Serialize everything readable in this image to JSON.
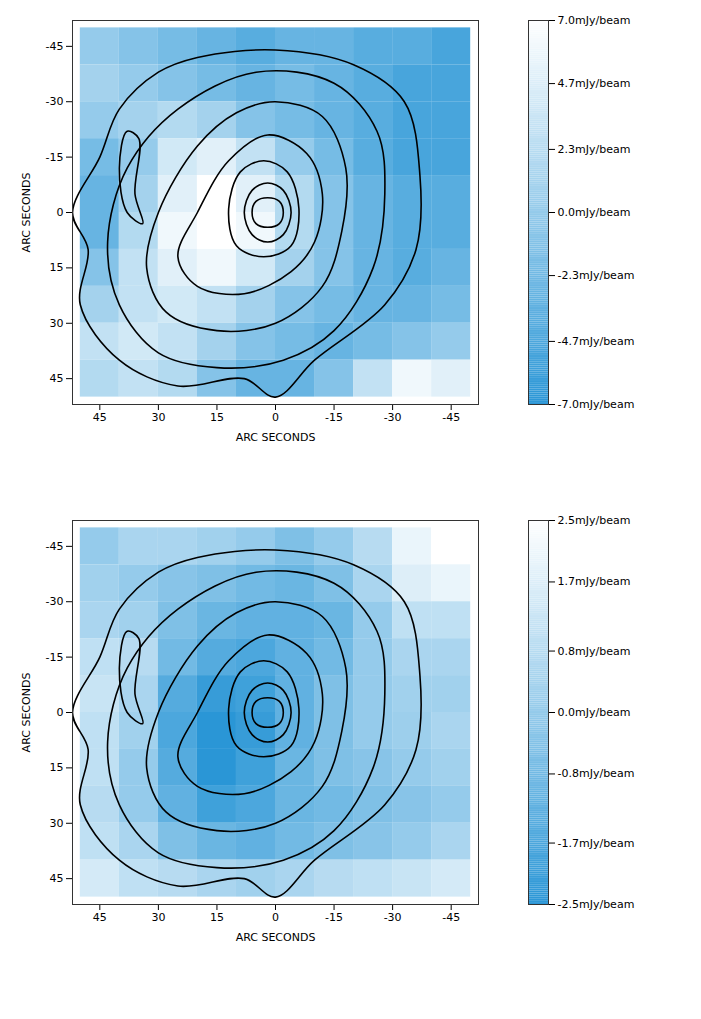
{
  "chart_data": [
    {
      "type": "heatmap",
      "x_label": "ARC SECONDS",
      "y_label": "ARC SECONDS",
      "xlim": [
        52,
        -52
      ],
      "ylim": [
        -52,
        52
      ],
      "xticks": [
        45,
        30,
        15,
        0,
        -15,
        -30,
        -45
      ],
      "yticks": [
        -45,
        -30,
        -15,
        0,
        15,
        30,
        45
      ],
      "x": [
        45,
        35,
        25,
        15,
        5,
        -5,
        -15,
        -25,
        -35,
        -45
      ],
      "y": [
        -45,
        -35,
        -25,
        -15,
        -5,
        5,
        15,
        25,
        35,
        45
      ],
      "values": [
        [
          0,
          -1,
          -2,
          -3,
          -4,
          -3,
          -3,
          -4,
          -4,
          -5
        ],
        [
          1,
          0,
          -1,
          -2,
          -3,
          -2,
          -3,
          -4,
          -5,
          -5
        ],
        [
          0,
          1,
          2,
          1,
          -1,
          -2,
          -3,
          -4,
          -5,
          -5
        ],
        [
          -2,
          0,
          4,
          5,
          3,
          0,
          -2,
          -4,
          -5,
          -5
        ],
        [
          -3,
          1,
          5,
          7,
          5,
          2,
          -1,
          -3,
          -4,
          -4
        ],
        [
          -3,
          2,
          6,
          7,
          6,
          2,
          -1,
          -3,
          -4,
          -4
        ],
        [
          -1,
          3,
          5,
          6,
          4,
          1,
          -1,
          -3,
          -4,
          -3
        ],
        [
          1,
          3,
          4,
          3,
          1,
          -1,
          -2,
          -3,
          -3,
          -2
        ],
        [
          3,
          4,
          3,
          1,
          -1,
          -2,
          -3,
          -2,
          -1,
          0
        ],
        [
          2,
          3,
          2,
          -1,
          -3,
          -3,
          -1,
          3,
          6,
          5
        ]
      ],
      "colorbar": {
        "range": [
          -7,
          7
        ],
        "ticks": [
          {
            "value": 7,
            "label": "7.0mJy/beam"
          },
          {
            "value": 4.7,
            "label": "4.7mJy/beam"
          },
          {
            "value": 2.3,
            "label": "2.3mJy/beam"
          },
          {
            "value": 0,
            "label": "0.0mJy/beam"
          },
          {
            "value": -2.3,
            "label": "-2.3mJy/beam"
          },
          {
            "value": -4.7,
            "label": "-4.7mJy/beam"
          },
          {
            "value": -7,
            "label": "-7.0mJy/beam"
          }
        ]
      },
      "contours": [
        [
          [
            2,
            -4
          ],
          [
            -1,
            -3
          ],
          [
            -2,
            0
          ],
          [
            -1,
            3
          ],
          [
            2,
            4
          ],
          [
            5,
            3
          ],
          [
            6,
            0
          ],
          [
            5,
            -3
          ]
        ],
        [
          [
            2,
            -8
          ],
          [
            -2,
            -6
          ],
          [
            -4,
            0
          ],
          [
            -2,
            6
          ],
          [
            2,
            8
          ],
          [
            6,
            6
          ],
          [
            8,
            0
          ],
          [
            6,
            -6
          ]
        ],
        [
          [
            3,
            -14
          ],
          [
            -3,
            -11
          ],
          [
            -6,
            -1
          ],
          [
            -4,
            9
          ],
          [
            3,
            12
          ],
          [
            10,
            9
          ],
          [
            12,
            -1
          ],
          [
            9,
            -11
          ]
        ],
        [
          [
            2,
            -21
          ],
          [
            -8,
            -16
          ],
          [
            -12,
            -5
          ],
          [
            -10,
            8
          ],
          [
            -4,
            16
          ],
          [
            8,
            22
          ],
          [
            20,
            20
          ],
          [
            25,
            12
          ],
          [
            20,
            0
          ],
          [
            12,
            -14
          ]
        ],
        [
          [
            0,
            -30
          ],
          [
            -12,
            -26
          ],
          [
            -18,
            -12
          ],
          [
            -17,
            5
          ],
          [
            -12,
            20
          ],
          [
            0,
            30
          ],
          [
            15,
            32
          ],
          [
            28,
            27
          ],
          [
            33,
            15
          ],
          [
            30,
            0
          ],
          [
            20,
            -18
          ],
          [
            10,
            -27
          ]
        ],
        [
          [
            5,
            -38
          ],
          [
            -15,
            -35
          ],
          [
            -26,
            -22
          ],
          [
            -28,
            -5
          ],
          [
            -25,
            15
          ],
          [
            -15,
            32
          ],
          [
            -2,
            40
          ],
          [
            15,
            42
          ],
          [
            30,
            38
          ],
          [
            40,
            25
          ],
          [
            43,
            8
          ],
          [
            38,
            -12
          ],
          [
            25,
            -28
          ]
        ],
        [
          [
            20,
            -42
          ],
          [
            0,
            -44
          ],
          [
            -20,
            -40
          ],
          [
            -33,
            -30
          ],
          [
            -37,
            -10
          ],
          [
            -36,
            10
          ],
          [
            -28,
            25
          ],
          [
            -10,
            40
          ],
          [
            0,
            50
          ],
          [
            8,
            45
          ],
          [
            25,
            47
          ],
          [
            40,
            40
          ],
          [
            50,
            25
          ],
          [
            48,
            10
          ],
          [
            52,
            0
          ],
          [
            45,
            -15
          ],
          [
            40,
            -28
          ],
          [
            30,
            -38
          ]
        ],
        [
          [
            38,
            -22
          ],
          [
            35,
            -20
          ],
          [
            36,
            -5
          ],
          [
            34,
            3
          ],
          [
            38,
            0
          ],
          [
            40,
            -12
          ]
        ]
      ]
    },
    {
      "type": "heatmap",
      "x_label": "ARC SECONDS",
      "y_label": "ARC SECONDS",
      "xlim": [
        52,
        -52
      ],
      "ylim": [
        -52,
        52
      ],
      "xticks": [
        45,
        30,
        15,
        0,
        -15,
        -30,
        -45
      ],
      "yticks": [
        -45,
        -30,
        -15,
        0,
        15,
        30,
        45
      ],
      "x": [
        45,
        35,
        25,
        15,
        5,
        -5,
        -15,
        -25,
        -35,
        -45
      ],
      "y": [
        -45,
        -35,
        -25,
        -15,
        -5,
        5,
        15,
        25,
        35,
        45
      ],
      "values": [
        [
          0,
          0.5,
          0.5,
          0.3,
          0,
          -0.5,
          0,
          0.8,
          2,
          2.5
        ],
        [
          0.3,
          0,
          -0.3,
          -0.5,
          -0.8,
          -1,
          -0.5,
          0.5,
          1.7,
          2
        ],
        [
          0.5,
          0.3,
          -0.5,
          -1,
          -1.2,
          -1.2,
          -1,
          0,
          1,
          1
        ],
        [
          1,
          0.8,
          -0.8,
          -1.5,
          -1.7,
          -1.2,
          -0.8,
          0,
          0.5,
          0.5
        ],
        [
          1.2,
          0.5,
          -1.5,
          -2.2,
          -2,
          -1.2,
          -0.5,
          0,
          0.3,
          0.3
        ],
        [
          1,
          0.3,
          -1.7,
          -2.5,
          -2.2,
          -1.2,
          -0.5,
          0,
          0.2,
          0.5
        ],
        [
          1,
          0,
          -1.5,
          -2.5,
          -2,
          -1,
          -0.5,
          -0.3,
          0,
          0.3
        ],
        [
          0.8,
          0,
          -1.2,
          -2,
          -1.7,
          -1,
          -0.8,
          -0.5,
          -0.3,
          0
        ],
        [
          1,
          0.5,
          -0.5,
          -1,
          -1.2,
          -0.8,
          -0.5,
          -0.3,
          0,
          0.5
        ],
        [
          1.5,
          1,
          0.8,
          0.5,
          0.3,
          0.5,
          0.8,
          1,
          1.2,
          1.5
        ]
      ],
      "colorbar": {
        "range": [
          -2.5,
          2.5
        ],
        "ticks": [
          {
            "value": 2.5,
            "label": "2.5mJy/beam"
          },
          {
            "value": 1.7,
            "label": "1.7mJy/beam"
          },
          {
            "value": 0.8,
            "label": "0.8mJy/beam"
          },
          {
            "value": 0,
            "label": "0.0mJy/beam"
          },
          {
            "value": -0.8,
            "label": "-0.8mJy/beam"
          },
          {
            "value": -1.7,
            "label": "-1.7mJy/beam"
          },
          {
            "value": -2.5,
            "label": "-2.5mJy/beam"
          }
        ]
      },
      "contours": [
        [
          [
            2,
            -4
          ],
          [
            -1,
            -3
          ],
          [
            -2,
            0
          ],
          [
            -1,
            3
          ],
          [
            2,
            4
          ],
          [
            5,
            3
          ],
          [
            6,
            0
          ],
          [
            5,
            -3
          ]
        ],
        [
          [
            2,
            -8
          ],
          [
            -2,
            -6
          ],
          [
            -4,
            0
          ],
          [
            -2,
            6
          ],
          [
            2,
            8
          ],
          [
            6,
            6
          ],
          [
            8,
            0
          ],
          [
            6,
            -6
          ]
        ],
        [
          [
            3,
            -14
          ],
          [
            -3,
            -11
          ],
          [
            -6,
            -1
          ],
          [
            -4,
            9
          ],
          [
            3,
            12
          ],
          [
            10,
            9
          ],
          [
            12,
            -1
          ],
          [
            9,
            -11
          ]
        ],
        [
          [
            2,
            -21
          ],
          [
            -8,
            -16
          ],
          [
            -12,
            -5
          ],
          [
            -10,
            8
          ],
          [
            -4,
            16
          ],
          [
            8,
            22
          ],
          [
            20,
            20
          ],
          [
            25,
            12
          ],
          [
            20,
            0
          ],
          [
            12,
            -14
          ]
        ],
        [
          [
            0,
            -30
          ],
          [
            -12,
            -26
          ],
          [
            -18,
            -12
          ],
          [
            -17,
            5
          ],
          [
            -12,
            20
          ],
          [
            0,
            30
          ],
          [
            15,
            32
          ],
          [
            28,
            27
          ],
          [
            33,
            15
          ],
          [
            30,
            0
          ],
          [
            20,
            -18
          ],
          [
            10,
            -27
          ]
        ],
        [
          [
            5,
            -38
          ],
          [
            -15,
            -35
          ],
          [
            -26,
            -22
          ],
          [
            -28,
            -5
          ],
          [
            -25,
            15
          ],
          [
            -15,
            32
          ],
          [
            -2,
            40
          ],
          [
            15,
            42
          ],
          [
            30,
            38
          ],
          [
            40,
            25
          ],
          [
            43,
            8
          ],
          [
            38,
            -12
          ],
          [
            25,
            -28
          ]
        ],
        [
          [
            20,
            -42
          ],
          [
            0,
            -44
          ],
          [
            -20,
            -40
          ],
          [
            -33,
            -30
          ],
          [
            -37,
            -10
          ],
          [
            -36,
            10
          ],
          [
            -28,
            25
          ],
          [
            -10,
            40
          ],
          [
            0,
            50
          ],
          [
            8,
            45
          ],
          [
            25,
            47
          ],
          [
            40,
            40
          ],
          [
            50,
            25
          ],
          [
            48,
            10
          ],
          [
            52,
            0
          ],
          [
            45,
            -15
          ],
          [
            40,
            -28
          ],
          [
            30,
            -38
          ]
        ],
        [
          [
            38,
            -22
          ],
          [
            35,
            -20
          ],
          [
            36,
            -5
          ],
          [
            34,
            3
          ],
          [
            38,
            0
          ],
          [
            40,
            -12
          ]
        ]
      ]
    }
  ]
}
